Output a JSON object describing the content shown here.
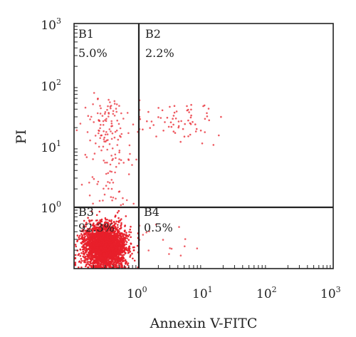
{
  "chart_data": {
    "type": "scatter",
    "title": "",
    "xlabel": "Annexin V-FITC",
    "ylabel": "PI",
    "x_scale": "log",
    "y_scale": "log",
    "xlim": [
      0.1,
      1000
    ],
    "ylim": [
      0.1,
      1000
    ],
    "x_ticks": [
      {
        "value": 1,
        "base": "10",
        "exp": "0"
      },
      {
        "value": 10,
        "base": "10",
        "exp": "1"
      },
      {
        "value": 100,
        "base": "10",
        "exp": "2"
      },
      {
        "value": 1000,
        "base": "10",
        "exp": "3"
      }
    ],
    "y_ticks": [
      {
        "value": 1,
        "base": "10",
        "exp": "0"
      },
      {
        "value": 10,
        "base": "10",
        "exp": "1"
      },
      {
        "value": 100,
        "base": "10",
        "exp": "2"
      },
      {
        "value": 1000,
        "base": "10",
        "exp": "3"
      }
    ],
    "gates": {
      "x": 1,
      "y": 1
    },
    "quadrants": [
      {
        "name": "B1",
        "percent": "5.0%",
        "position": "upper-left"
      },
      {
        "name": "B2",
        "percent": "2.2%",
        "position": "upper-right"
      },
      {
        "name": "B3",
        "percent": "92.3%",
        "position": "lower-left"
      },
      {
        "name": "B4",
        "percent": "0.5%",
        "position": "lower-right"
      }
    ],
    "point_color": "#e8202a",
    "grid": false,
    "legend": "none"
  }
}
